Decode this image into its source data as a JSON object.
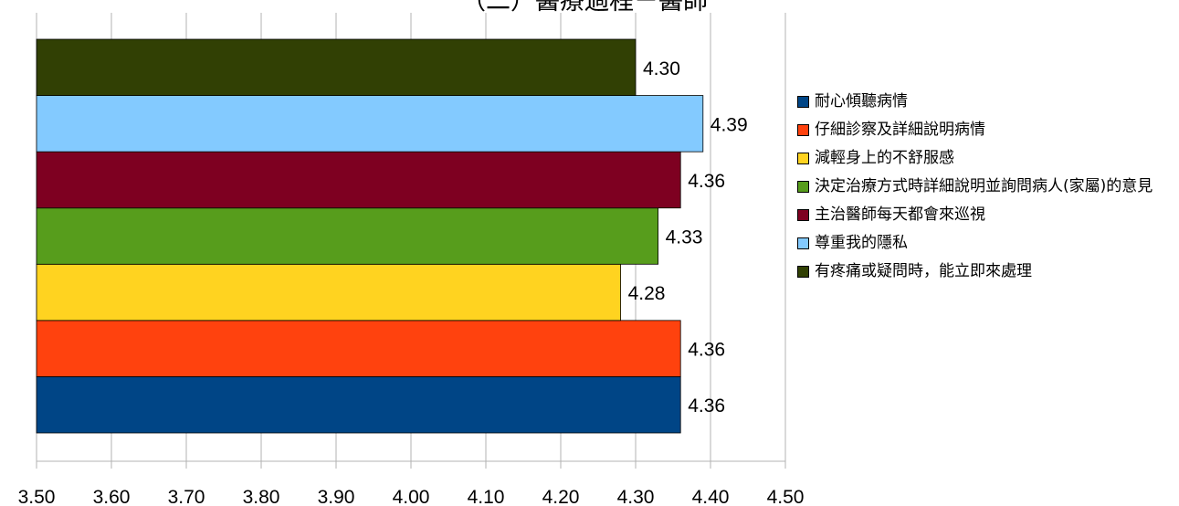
{
  "chart_data": {
    "type": "bar",
    "orientation": "horizontal",
    "title": "（二）醫療過程－醫師",
    "xlim": [
      3.5,
      4.5
    ],
    "x_ticks": [
      "3.50",
      "3.60",
      "3.70",
      "3.80",
      "3.90",
      "4.00",
      "4.10",
      "4.20",
      "4.30",
      "4.40",
      "4.50"
    ],
    "grid": true,
    "legend_position": "right",
    "series": [
      {
        "name": "耐心傾聽病情",
        "value": 4.36,
        "label": "4.36",
        "color": "#004586"
      },
      {
        "name": "仔細診察及詳細說明病情",
        "value": 4.36,
        "label": "4.36",
        "color": "#ff420e"
      },
      {
        "name": "減輕身上的不舒服感",
        "value": 4.28,
        "label": "4.28",
        "color": "#ffd320"
      },
      {
        "name": "決定治療方式時詳細說明並詢問病人(家屬)的意見",
        "value": 4.33,
        "label": "4.33",
        "color": "#579d1c"
      },
      {
        "name": "主治醫師每天都會來巡視",
        "value": 4.36,
        "label": "4.36",
        "color": "#7e0021"
      },
      {
        "name": "尊重我的隱私",
        "value": 4.39,
        "label": "4.39",
        "color": "#83caff"
      },
      {
        "name": "有疼痛或疑問時，能立即來處理",
        "value": 4.3,
        "label": "4.30",
        "color": "#314004"
      }
    ]
  }
}
